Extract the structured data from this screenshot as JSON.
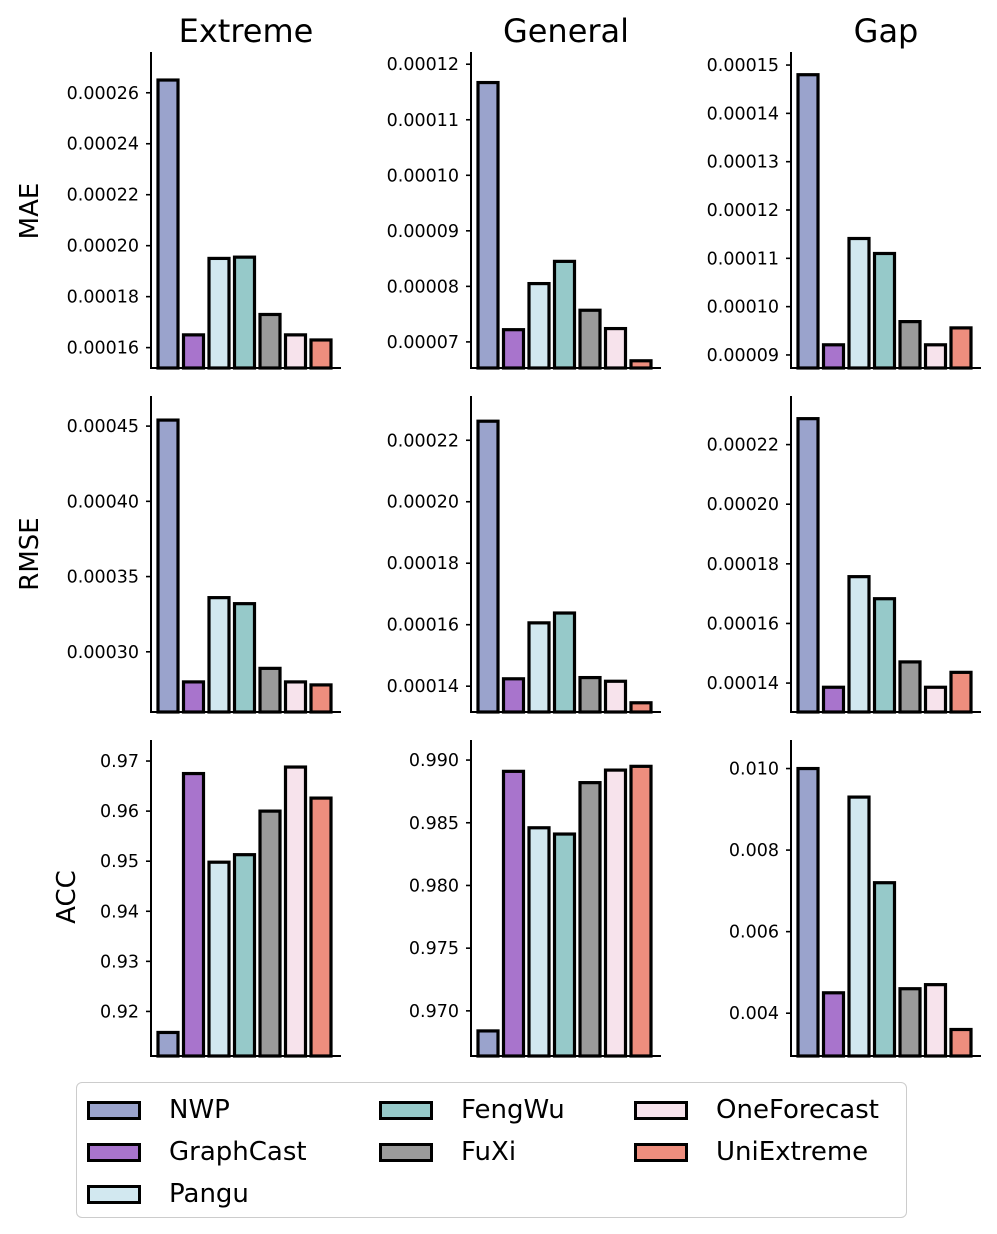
{
  "methods": [
    "NWP",
    "GraphCast",
    "Pangu",
    "FengWu",
    "FuXi",
    "OneForecast",
    "UniExtreme"
  ],
  "colors": [
    "#9aa3cc",
    "#a874cc",
    "#d2e8f0",
    "#96c9c9",
    "#9b9b9b",
    "#f7e3ec",
    "#ee8e7e"
  ],
  "chart_data": {
    "type": "bar",
    "column_titles": [
      "Extreme",
      "General",
      "Gap"
    ],
    "row_titles": [
      "MAE",
      "RMSE",
      "ACC"
    ],
    "categories": [
      "NWP",
      "GraphCast",
      "Pangu",
      "FengWu",
      "FuXi",
      "OneForecast",
      "UniExtreme"
    ],
    "panels": [
      {
        "row": "MAE",
        "column": "Extreme",
        "ylim": [
          0.000152,
          0.000276
        ],
        "ticks": [
          0.00016,
          0.00018,
          0.0002,
          0.00022,
          0.00024,
          0.00026
        ],
        "tick_labels": [
          "0.00016",
          "0.00018",
          "0.00020",
          "0.00022",
          "0.00024",
          "0.00026"
        ],
        "values": [
          0.000265,
          0.000165,
          0.000195,
          0.0001955,
          0.000173,
          0.000165,
          0.000163
        ]
      },
      {
        "row": "MAE",
        "column": "General",
        "ylim": [
          6.53e-05,
          0.0001222
        ],
        "ticks": [
          7e-05,
          8e-05,
          9e-05,
          0.0001,
          0.00011,
          0.00012
        ],
        "tick_labels": [
          "0.00007",
          "0.00008",
          "0.00009",
          "0.00010",
          "0.00011",
          "0.00012"
        ],
        "values": [
          0.0001167,
          7.22e-05,
          8.05e-05,
          8.45e-05,
          7.57e-05,
          7.24e-05,
          6.66e-05
        ]
      },
      {
        "row": "MAE",
        "column": "Gap",
        "ylim": [
          8.73e-05,
          0.0001527
        ],
        "ticks": [
          9e-05,
          0.0001,
          0.00011,
          0.00012,
          0.00013,
          0.00014,
          0.00015
        ],
        "tick_labels": [
          "0.00009",
          "0.00010",
          "0.00011",
          "0.00012",
          "0.00013",
          "0.00014",
          "0.00015"
        ],
        "values": [
          0.000148,
          9.21e-05,
          0.0001141,
          0.000111,
          9.69e-05,
          9.21e-05,
          9.56e-05
        ]
      },
      {
        "row": "RMSE",
        "column": "Extreme",
        "ylim": [
          0.00026,
          0.00047
        ],
        "ticks": [
          0.0003,
          0.00035,
          0.0004,
          0.00045
        ],
        "tick_labels": [
          "0.00030",
          "0.00035",
          "0.00040",
          "0.00045"
        ],
        "values": [
          0.000454,
          0.00028,
          0.000336,
          0.000332,
          0.000289,
          0.00028,
          0.000278
        ]
      },
      {
        "row": "RMSE",
        "column": "General",
        "ylim": [
          0.0001316,
          0.0002344
        ],
        "ticks": [
          0.00014,
          0.00016,
          0.00018,
          0.0002,
          0.00022
        ],
        "tick_labels": [
          "0.00014",
          "0.00016",
          "0.00018",
          "0.00020",
          "0.00022"
        ],
        "values": [
          0.0002262,
          0.0001424,
          0.0001606,
          0.0001638,
          0.0001428,
          0.0001416,
          0.0001346
        ]
      },
      {
        "row": "RMSE",
        "column": "Gap",
        "ylim": [
          0.0001303,
          0.0002363
        ],
        "ticks": [
          0.00014,
          0.00016,
          0.00018,
          0.0002,
          0.00022
        ],
        "tick_labels": [
          "0.00014",
          "0.00016",
          "0.00018",
          "0.00020",
          "0.00022"
        ],
        "values": [
          0.0002287,
          0.0001386,
          0.0001757,
          0.0001683,
          0.0001471,
          0.0001386,
          0.0001436
        ]
      },
      {
        "row": "ACC",
        "column": "Extreme",
        "ylim": [
          0.9111,
          0.9742
        ],
        "ticks": [
          0.92,
          0.93,
          0.94,
          0.95,
          0.96,
          0.97
        ],
        "tick_labels": [
          "0.92",
          "0.93",
          "0.94",
          "0.95",
          "0.96",
          "0.97"
        ],
        "values": [
          0.9158,
          0.9675,
          0.9498,
          0.9513,
          0.96,
          0.9688,
          0.9626
        ]
      },
      {
        "row": "ACC",
        "column": "General",
        "ylim": [
          0.9664,
          0.9916
        ],
        "ticks": [
          0.97,
          0.975,
          0.98,
          0.985,
          0.99
        ],
        "tick_labels": [
          "0.970",
          "0.975",
          "0.980",
          "0.985",
          "0.990"
        ],
        "values": [
          0.9684,
          0.9891,
          0.9846,
          0.9841,
          0.9882,
          0.9892,
          0.9895
        ]
      },
      {
        "row": "ACC",
        "column": "Gap",
        "ylim": [
          0.00295,
          0.0107
        ],
        "ticks": [
          0.004,
          0.006,
          0.008,
          0.01
        ],
        "tick_labels": [
          "0.004",
          "0.006",
          "0.008",
          "0.010"
        ],
        "values": [
          0.01,
          0.0045,
          0.0093,
          0.0072,
          0.0046,
          0.0047,
          0.0036
        ]
      }
    ],
    "legend": {
      "entries": [
        "NWP",
        "GraphCast",
        "Pangu",
        "FengWu",
        "FuXi",
        "OneForecast",
        "UniExtreme"
      ],
      "position": "bottom"
    }
  }
}
